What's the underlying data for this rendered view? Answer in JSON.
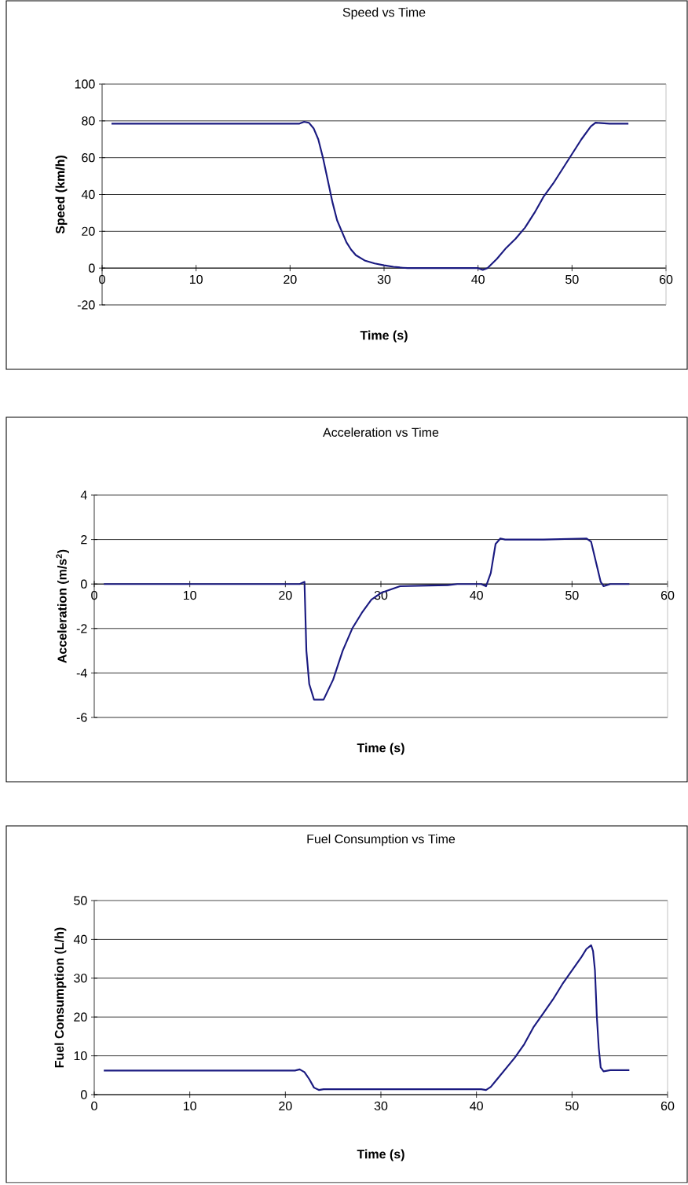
{
  "chart_data": [
    {
      "type": "line",
      "title": "Speed vs Time",
      "xlabel": "Time (s)",
      "ylabel": "Speed (km/h)",
      "color": "#1a1a80",
      "grid": "y",
      "x": [
        1,
        5,
        10,
        15,
        21,
        21.5,
        22,
        22.5,
        23,
        23.5,
        24,
        24.5,
        25,
        25.5,
        26,
        26.5,
        27,
        28,
        29,
        30,
        31,
        32,
        32.5,
        36,
        40,
        40.5,
        41,
        42,
        43,
        44,
        45,
        46,
        47,
        48,
        49,
        50,
        51,
        52,
        52.5,
        54,
        56
      ],
      "values": [
        78.5,
        78.5,
        78.5,
        78.5,
        78.5,
        79.5,
        79,
        76,
        70,
        60,
        48,
        36,
        26,
        20,
        14,
        10,
        7,
        4,
        2.5,
        1.5,
        0.7,
        0.2,
        0,
        0,
        0,
        -1,
        0,
        5,
        11,
        16,
        22,
        30,
        39,
        46,
        54,
        62,
        70,
        77,
        79,
        78.5,
        78.5
      ],
      "xlim": [
        0,
        60
      ],
      "ylim": [
        -20,
        100
      ],
      "xticks": [
        0,
        10,
        20,
        30,
        40,
        50,
        60
      ],
      "yticks": [
        -20,
        0,
        20,
        40,
        60,
        80,
        100
      ]
    },
    {
      "type": "line",
      "title": "Acceleration vs Time",
      "xlabel": "Time (s)",
      "ylabel": "Acceleration (m/s$^{2}$)",
      "color": "#1a1a80",
      "grid": "y",
      "x": [
        1,
        5,
        10,
        15,
        21.5,
        22,
        22.2,
        22.5,
        23,
        24,
        25,
        26,
        27,
        28,
        29,
        30,
        32,
        37,
        38,
        40.5,
        41,
        41.5,
        42,
        42.5,
        43,
        47,
        51.5,
        52,
        52.5,
        53,
        53.3,
        54,
        56
      ],
      "values": [
        0,
        0,
        0,
        0,
        0,
        0.1,
        -3,
        -4.5,
        -5.2,
        -5.2,
        -4.3,
        -3,
        -2,
        -1.3,
        -0.7,
        -0.4,
        -0.1,
        -0.05,
        0,
        0,
        -0.1,
        0.5,
        1.8,
        2.05,
        2,
        2,
        2.05,
        1.9,
        1,
        0.1,
        -0.1,
        0,
        0
      ],
      "xlim": [
        0,
        60
      ],
      "ylim": [
        -6,
        4
      ],
      "xticks": [
        0,
        10,
        20,
        30,
        40,
        50,
        60
      ],
      "yticks": [
        -6,
        -4,
        -2,
        0,
        2,
        4
      ]
    },
    {
      "type": "line",
      "title": "Fuel Consumption vs Time",
      "xlabel": "Time (s)",
      "ylabel": "Fuel Consumption (L/h)",
      "color": "#1a1a80",
      "grid": "y",
      "x": [
        1,
        5,
        10,
        15,
        21,
        21.5,
        22,
        22.5,
        23,
        23.5,
        24,
        30,
        35,
        40.5,
        41,
        41.5,
        42,
        43,
        44,
        45,
        46,
        47,
        48,
        49,
        50,
        51,
        51.5,
        52,
        52.2,
        52.4,
        52.6,
        52.8,
        53,
        53.3,
        54,
        56
      ],
      "values": [
        6.2,
        6.2,
        6.2,
        6.2,
        6.2,
        6.5,
        5.8,
        4,
        1.8,
        1.2,
        1.4,
        1.4,
        1.4,
        1.4,
        1.2,
        2,
        3.5,
        6.5,
        9.5,
        13,
        17.5,
        21,
        24.5,
        28.5,
        32,
        35.5,
        37.5,
        38.5,
        37,
        32,
        20,
        12,
        7,
        6,
        6.3,
        6.3
      ],
      "xlim": [
        0,
        60
      ],
      "ylim": [
        0,
        50
      ],
      "xticks": [
        0,
        10,
        20,
        30,
        40,
        50,
        60
      ],
      "yticks": [
        0,
        10,
        20,
        30,
        40,
        50
      ]
    }
  ]
}
